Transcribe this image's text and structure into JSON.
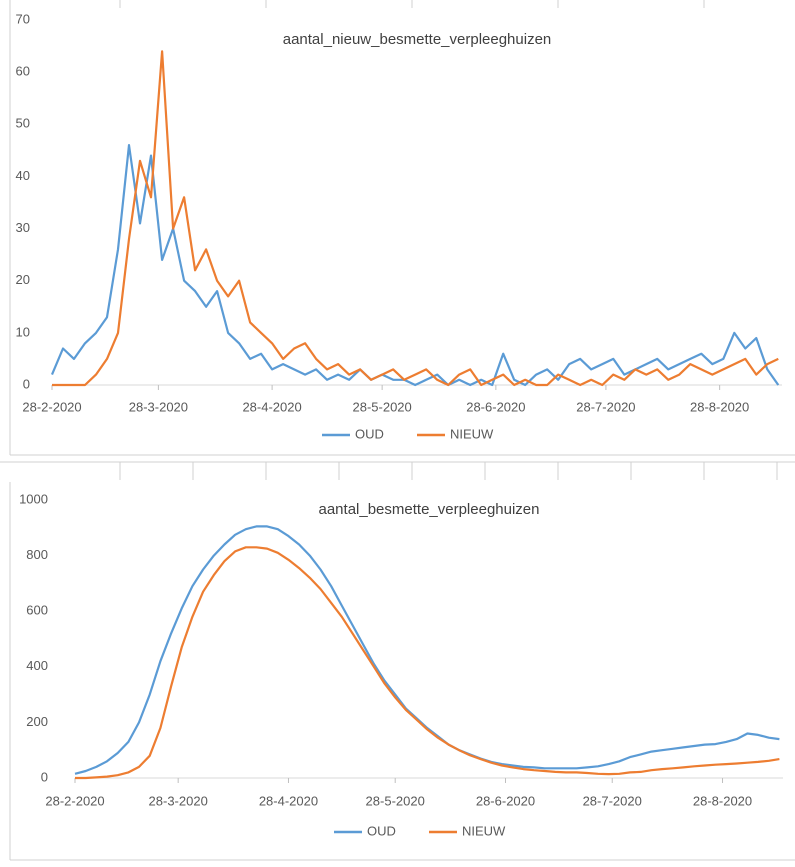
{
  "chart_data": [
    {
      "type": "line",
      "title": "aantal_nieuw_besmette_verpleeghuizen",
      "x": [
        "28-2-2020",
        "2-3-2020",
        "5-3-2020",
        "8-3-2020",
        "11-3-2020",
        "14-3-2020",
        "17-3-2020",
        "20-3-2020",
        "23-3-2020",
        "26-3-2020",
        "29-3-2020",
        "1-4-2020",
        "4-4-2020",
        "7-4-2020",
        "10-4-2020",
        "13-4-2020",
        "16-4-2020",
        "19-4-2020",
        "22-4-2020",
        "25-4-2020",
        "28-4-2020",
        "1-5-2020",
        "4-5-2020",
        "7-5-2020",
        "10-5-2020",
        "13-5-2020",
        "16-5-2020",
        "19-5-2020",
        "22-5-2020",
        "25-5-2020",
        "28-5-2020",
        "31-5-2020",
        "3-6-2020",
        "6-6-2020",
        "9-6-2020",
        "12-6-2020",
        "15-6-2020",
        "18-6-2020",
        "21-6-2020",
        "24-6-2020",
        "27-6-2020",
        "30-6-2020",
        "3-7-2020",
        "6-7-2020",
        "9-7-2020",
        "12-7-2020",
        "15-7-2020",
        "18-7-2020",
        "21-7-2020",
        "24-7-2020",
        "27-7-2020",
        "30-7-2020",
        "2-8-2020",
        "5-8-2020",
        "8-8-2020",
        "11-8-2020",
        "14-8-2020",
        "17-8-2020",
        "20-8-2020",
        "23-8-2020",
        "26-8-2020",
        "29-8-2020",
        "1-9-2020",
        "4-9-2020",
        "7-9-2020",
        "10-9-2020",
        "13-9-2020"
      ],
      "series": [
        {
          "name": "OUD",
          "color": "#5b9bd5",
          "values": [
            2,
            7,
            5,
            8,
            10,
            13,
            26,
            46,
            31,
            44,
            24,
            30,
            20,
            18,
            15,
            18,
            10,
            8,
            5,
            6,
            3,
            4,
            3,
            2,
            3,
            1,
            2,
            1,
            3,
            1,
            2,
            1,
            1,
            0,
            1,
            2,
            0,
            1,
            0,
            1,
            0,
            6,
            1,
            0,
            2,
            3,
            1,
            4,
            5,
            3,
            4,
            5,
            2,
            3,
            4,
            5,
            3,
            4,
            5,
            6,
            4,
            5,
            10,
            7,
            9,
            3,
            0
          ]
        },
        {
          "name": "NIEUW",
          "color": "#ed7d31",
          "values": [
            0,
            0,
            0,
            0,
            2,
            5,
            10,
            28,
            43,
            36,
            64,
            30,
            36,
            22,
            26,
            20,
            17,
            20,
            12,
            10,
            8,
            5,
            7,
            8,
            5,
            3,
            4,
            2,
            3,
            1,
            2,
            3,
            1,
            2,
            3,
            1,
            0,
            2,
            3,
            0,
            1,
            2,
            0,
            1,
            0,
            0,
            2,
            1,
            0,
            1,
            0,
            2,
            1,
            3,
            2,
            3,
            1,
            2,
            4,
            3,
            2,
            3,
            4,
            5,
            2,
            4,
            5
          ]
        }
      ],
      "xlim": [
        "28-2-2020",
        "14-9-2020"
      ],
      "xticks": [
        "28-2-2020",
        "28-3-2020",
        "28-4-2020",
        "28-5-2020",
        "28-6-2020",
        "28-7-2020",
        "28-8-2020"
      ],
      "ylim": [
        0,
        70
      ],
      "yticks": [
        0,
        10,
        20,
        30,
        40,
        50,
        60,
        70
      ],
      "legend": "bottom"
    },
    {
      "type": "line",
      "title": "aantal_besmette_verpleeghuizen",
      "x": [
        "28-2-2020",
        "2-3-2020",
        "5-3-2020",
        "8-3-2020",
        "11-3-2020",
        "14-3-2020",
        "17-3-2020",
        "20-3-2020",
        "23-3-2020",
        "26-3-2020",
        "29-3-2020",
        "1-4-2020",
        "4-4-2020",
        "7-4-2020",
        "10-4-2020",
        "13-4-2020",
        "16-4-2020",
        "19-4-2020",
        "22-4-2020",
        "25-4-2020",
        "28-4-2020",
        "1-5-2020",
        "4-5-2020",
        "7-5-2020",
        "10-5-2020",
        "13-5-2020",
        "16-5-2020",
        "19-5-2020",
        "22-5-2020",
        "25-5-2020",
        "28-5-2020",
        "31-5-2020",
        "3-6-2020",
        "6-6-2020",
        "9-6-2020",
        "12-6-2020",
        "15-6-2020",
        "18-6-2020",
        "21-6-2020",
        "24-6-2020",
        "27-6-2020",
        "30-6-2020",
        "3-7-2020",
        "6-7-2020",
        "9-7-2020",
        "12-7-2020",
        "15-7-2020",
        "18-7-2020",
        "21-7-2020",
        "24-7-2020",
        "27-7-2020",
        "30-7-2020",
        "2-8-2020",
        "5-8-2020",
        "8-8-2020",
        "11-8-2020",
        "14-8-2020",
        "17-8-2020",
        "20-8-2020",
        "23-8-2020",
        "26-8-2020",
        "29-8-2020",
        "1-9-2020",
        "4-9-2020",
        "7-9-2020",
        "10-9-2020",
        "13-9-2020"
      ],
      "series": [
        {
          "name": "OUD",
          "color": "#5b9bd5",
          "values": [
            15,
            25,
            40,
            60,
            90,
            130,
            200,
            300,
            420,
            520,
            610,
            690,
            750,
            800,
            840,
            875,
            895,
            905,
            905,
            895,
            870,
            840,
            800,
            750,
            690,
            620,
            550,
            480,
            410,
            350,
            300,
            250,
            215,
            180,
            150,
            120,
            100,
            85,
            70,
            58,
            50,
            45,
            40,
            38,
            35,
            35,
            35,
            35,
            38,
            42,
            50,
            60,
            75,
            85,
            95,
            100,
            105,
            110,
            115,
            120,
            122,
            130,
            140,
            160,
            155,
            145,
            140
          ]
        },
        {
          "name": "NIEUW",
          "color": "#ed7d31",
          "values": [
            0,
            0,
            2,
            5,
            10,
            20,
            40,
            80,
            180,
            330,
            470,
            580,
            670,
            730,
            780,
            815,
            830,
            830,
            825,
            810,
            785,
            755,
            720,
            680,
            630,
            580,
            520,
            460,
            400,
            340,
            290,
            245,
            210,
            175,
            145,
            120,
            100,
            82,
            68,
            55,
            45,
            38,
            32,
            28,
            25,
            22,
            20,
            20,
            18,
            15,
            14,
            15,
            20,
            22,
            28,
            32,
            35,
            38,
            42,
            45,
            48,
            50,
            52,
            55,
            58,
            62,
            68
          ]
        }
      ],
      "xlim": [
        "28-2-2020",
        "14-9-2020"
      ],
      "xticks": [
        "28-2-2020",
        "28-3-2020",
        "28-4-2020",
        "28-5-2020",
        "28-6-2020",
        "28-7-2020",
        "28-8-2020"
      ],
      "ylim": [
        0,
        1000
      ],
      "yticks": [
        0,
        200,
        400,
        600,
        800,
        1000
      ],
      "legend": "bottom"
    }
  ]
}
